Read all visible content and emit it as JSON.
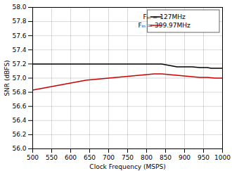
{
  "chart_data": {
    "type": "line",
    "xlabel": "Clock Frequency (MSPS)",
    "ylabel": "SNR (dBFS)",
    "series": [
      {
        "name": "Fᵢₙ = 127MHz",
        "color": "#000000",
        "x": [
          500,
          520,
          540,
          560,
          580,
          600,
          620,
          640,
          660,
          680,
          700,
          720,
          740,
          760,
          770,
          780,
          800,
          820,
          840,
          860,
          870,
          880,
          900,
          920,
          940,
          960,
          970,
          980,
          1000
        ],
        "values": [
          57.2,
          57.2,
          57.2,
          57.2,
          57.2,
          57.2,
          57.2,
          57.2,
          57.2,
          57.2,
          57.2,
          57.2,
          57.2,
          57.2,
          57.2,
          57.2,
          57.2,
          57.2,
          57.2,
          57.18,
          57.17,
          57.16,
          57.16,
          57.16,
          57.15,
          57.15,
          57.14,
          57.14,
          57.14
        ]
      },
      {
        "name": "Fᵢₙ = 399.97MHz",
        "color": "#cc0000",
        "x": [
          500,
          520,
          540,
          560,
          580,
          600,
          620,
          640,
          660,
          680,
          700,
          720,
          740,
          760,
          780,
          800,
          820,
          840,
          860,
          880,
          900,
          920,
          940,
          960,
          980,
          1000
        ],
        "values": [
          56.83,
          56.85,
          56.87,
          56.89,
          56.91,
          56.93,
          56.95,
          56.97,
          56.98,
          56.99,
          57.0,
          57.01,
          57.02,
          57.03,
          57.04,
          57.05,
          57.06,
          57.06,
          57.05,
          57.04,
          57.03,
          57.02,
          57.01,
          57.01,
          57.0,
          57.0
        ]
      }
    ],
    "xlim": [
      500,
      1000
    ],
    "ylim": [
      56.0,
      58.0
    ],
    "xticks": [
      500,
      550,
      600,
      650,
      700,
      750,
      800,
      850,
      900,
      950,
      1000
    ],
    "yticks": [
      {
        "value": 56.0,
        "label": "56.0"
      },
      56.2,
      56.4,
      56.6,
      56.8,
      {
        "value": 57.0,
        "label": "57.0"
      },
      57.2,
      57.4,
      57.6,
      57.8,
      {
        "value": 58.0,
        "label": "58.0"
      }
    ],
    "grid": true,
    "legend": "upper right"
  }
}
